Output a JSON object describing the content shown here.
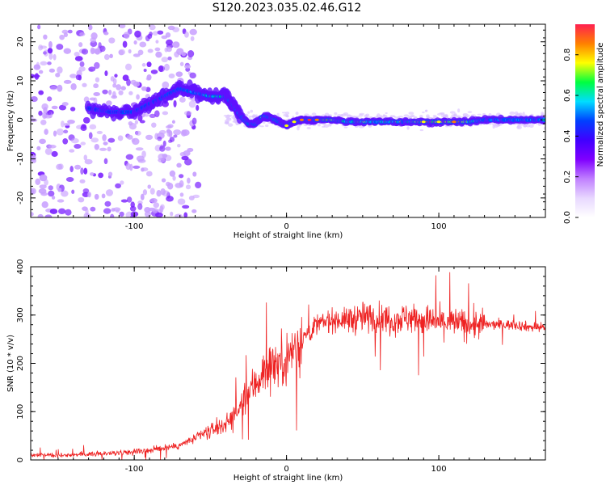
{
  "title": "S120.2023.035.02.46.G12",
  "chart_data": [
    {
      "type": "heatmap",
      "xlabel": "Height of straight line (km)",
      "ylabel": "Frequency (Hz)",
      "xlim": [
        -168,
        170
      ],
      "ylim": [
        -25,
        24.5
      ],
      "x_ticks": [
        -100,
        0,
        100
      ],
      "y_ticks": [
        -20,
        -10,
        0,
        10,
        20
      ],
      "colorbar": {
        "label": "Normalized spectral amplitude",
        "range": [
          0,
          0.95
        ],
        "ticks": [
          "0.0",
          "0.2",
          "0.4",
          "0.6",
          "0.8"
        ],
        "tick_values": [
          0,
          0.2,
          0.4,
          0.6,
          0.8
        ],
        "colormap": [
          "#ffffff",
          "#e8d8ff",
          "#c080ff",
          "#8000ff",
          "#4000ff",
          "#0040ff",
          "#00ddff",
          "#00ff40",
          "#ffff00",
          "#ff8000",
          "#ff2050"
        ]
      },
      "ridge": [
        {
          "x": -130,
          "y": 3,
          "a": 0.35
        },
        {
          "x": -115,
          "y": 2,
          "a": 0.4
        },
        {
          "x": -100,
          "y": 2,
          "a": 0.4
        },
        {
          "x": -90,
          "y": 4,
          "a": 0.35
        },
        {
          "x": -80,
          "y": 6,
          "a": 0.4
        },
        {
          "x": -70,
          "y": 8,
          "a": 0.45
        },
        {
          "x": -60,
          "y": 7,
          "a": 0.5
        },
        {
          "x": -50,
          "y": 6,
          "a": 0.55
        },
        {
          "x": -40,
          "y": 6,
          "a": 0.6
        },
        {
          "x": -35,
          "y": 4,
          "a": 0.55
        },
        {
          "x": -30,
          "y": 1,
          "a": 0.55
        },
        {
          "x": -25,
          "y": -1,
          "a": 0.6
        },
        {
          "x": -20,
          "y": -1,
          "a": 0.65
        },
        {
          "x": -15,
          "y": 1,
          "a": 0.7
        },
        {
          "x": -10,
          "y": 0.5,
          "a": 0.7
        },
        {
          "x": -5,
          "y": -0.5,
          "a": 0.7
        },
        {
          "x": 0,
          "y": -1.5,
          "a": 0.75
        },
        {
          "x": 5,
          "y": -0.5,
          "a": 0.8
        },
        {
          "x": 10,
          "y": 0,
          "a": 0.9
        },
        {
          "x": 15,
          "y": 0,
          "a": 0.95
        },
        {
          "x": 20,
          "y": 0,
          "a": 0.9
        },
        {
          "x": 30,
          "y": 0,
          "a": 0.7
        },
        {
          "x": 40,
          "y": -0.5,
          "a": 0.6
        },
        {
          "x": 50,
          "y": -0.5,
          "a": 0.65
        },
        {
          "x": 60,
          "y": -0.5,
          "a": 0.6
        },
        {
          "x": 70,
          "y": -0.5,
          "a": 0.65
        },
        {
          "x": 80,
          "y": -0.5,
          "a": 0.6
        },
        {
          "x": 90,
          "y": -0.5,
          "a": 0.8
        },
        {
          "x": 100,
          "y": -0.5,
          "a": 0.8
        },
        {
          "x": 110,
          "y": -0.5,
          "a": 0.85
        },
        {
          "x": 120,
          "y": -0.5,
          "a": 0.6
        },
        {
          "x": 130,
          "y": 0,
          "a": 0.55
        },
        {
          "x": 140,
          "y": 0,
          "a": 0.55
        },
        {
          "x": 150,
          "y": 0,
          "a": 0.5
        },
        {
          "x": 160,
          "y": 0,
          "a": 0.5
        },
        {
          "x": 170,
          "y": 0,
          "a": 0.5
        }
      ]
    },
    {
      "type": "line",
      "xlabel": "Height of straight line (km)",
      "ylabel": "SNR (10 * v/v)",
      "xlim": [
        -168,
        170
      ],
      "ylim": [
        0,
        400
      ],
      "x_ticks": [
        -100,
        0,
        100
      ],
      "y_ticks": [
        0,
        100,
        200,
        300,
        400
      ],
      "line_color": "#ee2222",
      "series": [
        {
          "x": [
            -168,
            -150,
            -130,
            -110,
            -90,
            -70,
            -60,
            -50,
            -40,
            -35,
            -30,
            -25,
            -20,
            -15,
            -10,
            -5,
            0,
            5,
            10,
            15,
            20,
            25,
            30,
            40,
            50,
            60,
            70,
            80,
            90,
            100,
            110,
            120,
            130,
            140,
            150,
            160,
            170
          ],
          "values": [
            10,
            10,
            12,
            15,
            20,
            30,
            45,
            60,
            75,
            90,
            110,
            140,
            160,
            180,
            200,
            200,
            210,
            230,
            250,
            265,
            280,
            285,
            290,
            290,
            295,
            295,
            290,
            295,
            290,
            285,
            285,
            280,
            280,
            280,
            280,
            275,
            275
          ]
        }
      ]
    }
  ]
}
